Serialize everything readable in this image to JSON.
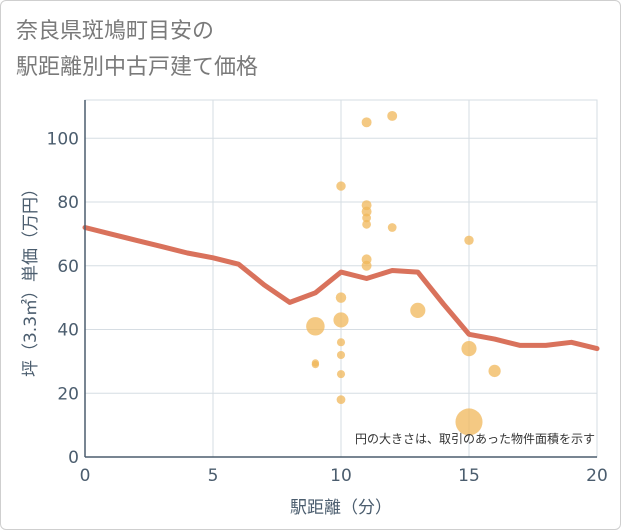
{
  "chart_data": {
    "type": "scatter",
    "title": [
      "奈良県斑鳩町目安の",
      "駅距離別中古戸建て価格"
    ],
    "xlabel": "駅距離（分）",
    "ylabel": "坪（3.3㎡）単価（万円）",
    "xlim": [
      0,
      20
    ],
    "ylim": [
      0,
      112
    ],
    "xticks": [
      0,
      5,
      10,
      15,
      20
    ],
    "yticks": [
      0,
      20,
      40,
      60,
      80,
      100
    ],
    "grid": true,
    "annotation": "円の大きさは、取引のあった物件面積を示す",
    "colors": {
      "bubble": "#f0b75a",
      "line": "#d9725c",
      "grid": "#d6dde3",
      "axis": "#4b5d6e"
    },
    "bubbles": [
      {
        "x": 9,
        "y": 41,
        "size": 3.2
      },
      {
        "x": 9,
        "y": 29,
        "size": 0.3
      },
      {
        "x": 9,
        "y": 29.5,
        "size": 0.3
      },
      {
        "x": 10,
        "y": 85,
        "size": 0.6
      },
      {
        "x": 10,
        "y": 50,
        "size": 0.8
      },
      {
        "x": 10,
        "y": 43,
        "size": 2.0
      },
      {
        "x": 10,
        "y": 36,
        "size": 0.4
      },
      {
        "x": 10,
        "y": 32,
        "size": 0.4
      },
      {
        "x": 10,
        "y": 26,
        "size": 0.4
      },
      {
        "x": 10,
        "y": 18,
        "size": 0.5
      },
      {
        "x": 11,
        "y": 105,
        "size": 0.7
      },
      {
        "x": 11,
        "y": 79,
        "size": 0.7
      },
      {
        "x": 11,
        "y": 77,
        "size": 0.7
      },
      {
        "x": 11,
        "y": 75,
        "size": 0.5
      },
      {
        "x": 11,
        "y": 73,
        "size": 0.5
      },
      {
        "x": 11,
        "y": 62,
        "size": 0.7
      },
      {
        "x": 11,
        "y": 60,
        "size": 0.7
      },
      {
        "x": 12,
        "y": 107,
        "size": 0.7
      },
      {
        "x": 12,
        "y": 72,
        "size": 0.5
      },
      {
        "x": 13,
        "y": 46,
        "size": 2.0
      },
      {
        "x": 15,
        "y": 68,
        "size": 0.6
      },
      {
        "x": 15,
        "y": 34,
        "size": 2.0
      },
      {
        "x": 15,
        "y": 11,
        "size": 7.5
      },
      {
        "x": 16,
        "y": 27,
        "size": 1.2
      }
    ],
    "line": {
      "x": [
        0,
        1,
        2,
        3,
        4,
        5,
        6,
        7,
        8,
        9,
        10,
        11,
        12,
        13,
        14,
        15,
        16,
        17,
        18,
        19,
        20
      ],
      "y": [
        72,
        70,
        68,
        66,
        64,
        62.5,
        60.5,
        54,
        48.5,
        51.5,
        58,
        56,
        58.5,
        58,
        48,
        38.5,
        37,
        35,
        35,
        36,
        34
      ]
    }
  }
}
